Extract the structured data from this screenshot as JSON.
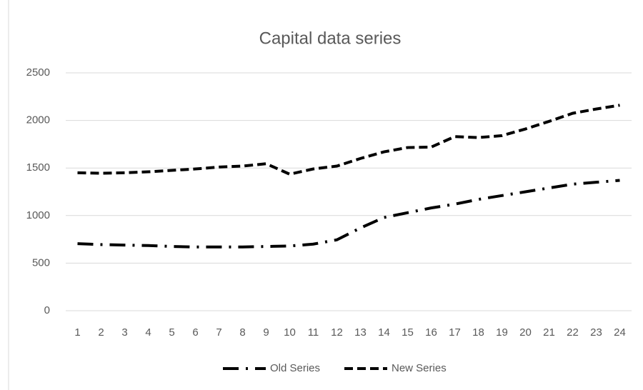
{
  "chart_data": {
    "type": "line",
    "title": "Capital data series",
    "categories": [
      "1",
      "2",
      "3",
      "4",
      "5",
      "6",
      "7",
      "8",
      "9",
      "10",
      "11",
      "12",
      "13",
      "14",
      "15",
      "16",
      "17",
      "18",
      "19",
      "20",
      "21",
      "22",
      "23",
      "24"
    ],
    "series": [
      {
        "name": "Old Series",
        "color": "#000000",
        "style": "dash-dot",
        "values": [
          705,
          695,
          690,
          685,
          675,
          670,
          670,
          670,
          675,
          680,
          700,
          745,
          870,
          980,
          1030,
          1080,
          1120,
          1170,
          1210,
          1250,
          1290,
          1330,
          1350,
          1370
        ]
      },
      {
        "name": "New Series",
        "color": "#000000",
        "style": "dashed",
        "values": [
          1450,
          1445,
          1450,
          1460,
          1475,
          1490,
          1510,
          1520,
          1545,
          1435,
          1490,
          1520,
          1600,
          1670,
          1715,
          1720,
          1830,
          1820,
          1840,
          1910,
          1990,
          2075,
          2120,
          2160
        ]
      }
    ],
    "ylim": [
      0,
      2500
    ],
    "yticks": [
      0,
      500,
      1000,
      1500,
      2000,
      2500
    ],
    "grid": true,
    "legend": "bottom"
  }
}
